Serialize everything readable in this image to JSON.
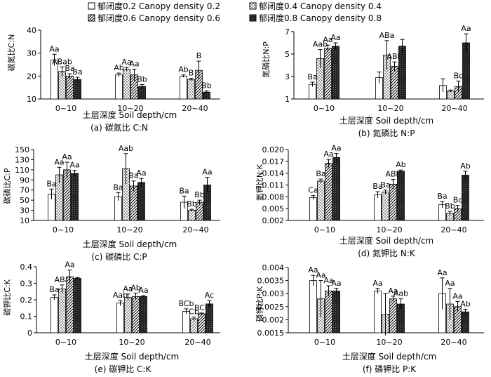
{
  "legend": [
    {
      "label": "郁闭度0.2 Canopy density 0.2",
      "pattern": "white"
    },
    {
      "label": "郁闭度0.4 Canopy density 0.4",
      "pattern": "dots"
    },
    {
      "label": "郁闭度0.6 Canopy density 0.6",
      "pattern": "hatch"
    },
    {
      "label": "郁闭度0.8 Canopy density 0.8",
      "pattern": "dark"
    }
  ],
  "chart_data": [
    {
      "id": "a",
      "type": "bar",
      "caption": "(a) 碳氮比 C:N",
      "ylabel": "碳氮比C:N",
      "xlabel": "土层深度 Soil depth/cm",
      "categories": [
        "0~10",
        "10~20",
        "20~40"
      ],
      "ylim": [
        10,
        40
      ],
      "yticks": [
        "10",
        "20",
        "30",
        "40"
      ],
      "ytick_values": [
        10,
        20,
        30,
        40
      ],
      "series": [
        {
          "name": "郁闭度0.2 Canopy density 0.2",
          "values": [
            27,
            20.5,
            20
          ],
          "errors": [
            2.5,
            0.8,
            0.5
          ],
          "labels": [
            "Aa",
            "Ab",
            "Ab"
          ]
        },
        {
          "name": "郁闭度0.4 Canopy density 0.4",
          "values": [
            22,
            23,
            18.5
          ],
          "errors": [
            2.0,
            0.8,
            0.5
          ],
          "labels": [
            "ABab",
            "Aa",
            "B"
          ]
        },
        {
          "name": "郁闭度0.6 Canopy density 0.6",
          "values": [
            20,
            20.5,
            22.5
          ],
          "errors": [
            1.0,
            2.5,
            4.0
          ],
          "labels": [
            "Ba",
            "Aa",
            "B"
          ]
        },
        {
          "name": "郁闭度0.8 Canopy density 0.8",
          "values": [
            18.5,
            15.5,
            13
          ],
          "errors": [
            1.0,
            0.8,
            0.5
          ],
          "labels": [
            "Ba",
            "Bb",
            "Bb"
          ]
        }
      ]
    },
    {
      "id": "b",
      "type": "bar",
      "caption": "(b) 氮磷比 N:P",
      "ylabel": "氮磷比N:P",
      "xlabel": "土层深度 Soil depth/cm",
      "categories": [
        "0~10",
        "10~20",
        "20~40"
      ],
      "ylim": [
        1,
        7
      ],
      "yticks": [
        "1",
        "3",
        "5",
        "7"
      ],
      "ytick_values": [
        1,
        3,
        5,
        7
      ],
      "series": [
        {
          "name": "郁闭度0.2 Canopy density 0.2",
          "values": [
            2.3,
            2.9,
            2.2
          ],
          "errors": [
            0.2,
            0.5,
            0.6
          ],
          "labels": [
            "Ba",
            "",
            ""
          ]
        },
        {
          "name": "郁闭度0.4 Canopy density 0.4",
          "values": [
            4.6,
            4.9,
            1.7
          ],
          "errors": [
            0.8,
            1.3,
            0.1
          ],
          "labels": [
            "Aab",
            "ABa",
            ""
          ]
        },
        {
          "name": "郁闭度0.6 Canopy density 0.6",
          "values": [
            5.5,
            3.9,
            2.1
          ],
          "errors": [
            0.3,
            0.4,
            0.5
          ],
          "labels": [
            "Aa",
            "ABb",
            "Bc"
          ]
        },
        {
          "name": "郁闭度0.8 Canopy density 0.8",
          "values": [
            5.7,
            5.7,
            6.0
          ],
          "errors": [
            0.3,
            0.6,
            0.8
          ],
          "labels": [
            "Aa",
            "",
            "Aa"
          ]
        }
      ]
    },
    {
      "id": "c",
      "type": "bar",
      "caption": "(c) 碳磷比 C:P",
      "ylabel": "碳磷比C:P",
      "xlabel": "土层深度 Soil depth/cm",
      "categories": [
        "0~10",
        "10~20",
        "20~40"
      ],
      "ylim": [
        10,
        150
      ],
      "yticks": [
        "10",
        "30",
        "50",
        "70",
        "90",
        "110",
        "130",
        "150"
      ],
      "ytick_values": [
        10,
        30,
        50,
        70,
        90,
        110,
        130,
        150
      ],
      "series": [
        {
          "name": "郁闭度0.2 Canopy density 0.2",
          "values": [
            62,
            57,
            46
          ],
          "errors": [
            10,
            8,
            12
          ],
          "labels": [
            "Ba",
            "Ba",
            "Ba"
          ]
        },
        {
          "name": "郁闭度0.4 Canopy density 0.4",
          "values": [
            100,
            112,
            30
          ],
          "errors": [
            15,
            30,
            2
          ],
          "labels": [
            "Aa",
            "Aab",
            "Bb"
          ]
        },
        {
          "name": "郁闭度0.6 Canopy density 0.6",
          "values": [
            110,
            78,
            46
          ],
          "errors": [
            15,
            10,
            4
          ],
          "labels": [
            "Aa",
            "Ba",
            "Bb"
          ]
        },
        {
          "name": "郁闭度0.8 Canopy density 0.8",
          "values": [
            103,
            85,
            80
          ],
          "errors": [
            6,
            8,
            15
          ],
          "labels": [
            "Aa",
            "Aa",
            "Aa"
          ]
        }
      ]
    },
    {
      "id": "d",
      "type": "bar",
      "caption": "(d) 氮钾比 N:K",
      "ylabel": "氮钾比N:K",
      "xlabel": "土层深度 Soil depth/cm",
      "categories": [
        "0~10",
        "10~20",
        "20~40"
      ],
      "ylim": [
        0.002,
        0.02
      ],
      "yticks": [
        "0.002",
        "0.005",
        "0.008",
        "0.011",
        "0.014",
        "0.017",
        "0.020"
      ],
      "ytick_values": [
        0.002,
        0.005,
        0.008,
        0.011,
        0.014,
        0.017,
        0.02
      ],
      "series": [
        {
          "name": "郁闭度0.2 Canopy density 0.2",
          "values": [
            0.0078,
            0.0085,
            0.006
          ],
          "errors": [
            0.0005,
            0.0008,
            0.0008
          ],
          "labels": [
            "Ca",
            "Ba",
            "Ba"
          ]
        },
        {
          "name": "郁闭度0.4 Canopy density 0.4",
          "values": [
            0.012,
            0.0092,
            0.0038
          ],
          "errors": [
            0.0005,
            0.0005,
            0.0005
          ],
          "labels": [
            "Ba",
            "Ba",
            "Bb"
          ]
        },
        {
          "name": "郁闭度0.6 Canopy density 0.6",
          "values": [
            0.0165,
            0.0112,
            0.005
          ],
          "errors": [
            0.001,
            0.0012,
            0.0008
          ],
          "labels": [
            "Aa",
            "ABb",
            "Bc"
          ]
        },
        {
          "name": "郁闭度0.8 Canopy density 0.8",
          "values": [
            0.018,
            0.0145,
            0.0135
          ],
          "errors": [
            0.001,
            0.0003,
            0.001
          ],
          "labels": [
            "Aa",
            "Ab",
            "Ab"
          ]
        }
      ]
    },
    {
      "id": "e",
      "type": "bar",
      "caption": "(e) 碳钾比 C:K",
      "ylabel": "碳钾比C:K",
      "xlabel": "土层深度 Soil depth/cm",
      "categories": [
        "0~10",
        "10~20",
        "20~40"
      ],
      "ylim": [
        0,
        0.4
      ],
      "yticks": [
        "0",
        "0.1",
        "0.2",
        "0.3",
        "0.4"
      ],
      "ytick_values": [
        0,
        0.1,
        0.2,
        0.3,
        0.4
      ],
      "series": [
        {
          "name": "郁闭度0.2 Canopy density 0.2",
          "values": [
            0.215,
            0.18,
            0.13
          ],
          "errors": [
            0.015,
            0.015,
            0.015
          ],
          "labels": [
            "Ba",
            "Aab",
            "BCb"
          ]
        },
        {
          "name": "郁闭度0.4 Canopy density 0.4",
          "values": [
            0.265,
            0.215,
            0.085
          ],
          "errors": [
            0.025,
            0.02,
            0.01
          ],
          "labels": [
            "ABa",
            "Aa",
            "Cb"
          ]
        },
        {
          "name": "郁闭度0.6 Canopy density 0.6",
          "values": [
            0.34,
            0.22,
            0.115
          ],
          "errors": [
            0.04,
            0.02,
            0.005
          ],
          "labels": [
            "Aa",
            "Ab",
            "BCc"
          ]
        },
        {
          "name": "郁闭度0.8 Canopy density 0.8",
          "values": [
            0.33,
            0.22,
            0.175
          ],
          "errors": [
            0.005,
            0.005,
            0.02
          ],
          "labels": [
            "",
            "Aa",
            "Ac"
          ]
        }
      ]
    },
    {
      "id": "f",
      "type": "bar",
      "caption": "(f) 磷钾比 P:K",
      "ylabel": "磷钾比P:K",
      "xlabel": "土层深度 Soil depth/cm",
      "categories": [
        "0~10",
        "10~20",
        "20~40"
      ],
      "ylim": [
        0.0015,
        0.004
      ],
      "yticks": [
        "0.0015",
        "0.002",
        "0.0025",
        "0.003",
        "0.0035",
        "0.004"
      ],
      "ytick_values": [
        0.0015,
        0.002,
        0.0025,
        0.003,
        0.0035,
        0.004
      ],
      "series": [
        {
          "name": "郁闭度0.2 Canopy density 0.2",
          "values": [
            0.0035,
            0.0031,
            0.003
          ],
          "errors": [
            0.0002,
            0.0001,
            0.0006
          ],
          "labels": [
            "Aa",
            "Aa",
            "Aa"
          ]
        },
        {
          "name": "郁闭度0.4 Canopy density 0.4",
          "values": [
            0.0028,
            0.0022,
            0.0026
          ],
          "errors": [
            0.0007,
            0.0008,
            0.0006
          ],
          "labels": [
            "Aa",
            "",
            "Aa"
          ]
        },
        {
          "name": "郁闭度0.6 Canopy density 0.6",
          "values": [
            0.0031,
            0.0028,
            0.0025
          ],
          "errors": [
            0.0002,
            0.0001,
            0.0002
          ],
          "labels": [
            "Aa",
            "Aa",
            "Aa"
          ]
        },
        {
          "name": "郁闭度0.8 Canopy density 0.8",
          "values": [
            0.0031,
            0.0026,
            0.0023
          ],
          "errors": [
            0.0001,
            0.0002,
            0.0001
          ],
          "labels": [
            "Aa",
            "Aab",
            "Ab"
          ]
        }
      ]
    }
  ]
}
